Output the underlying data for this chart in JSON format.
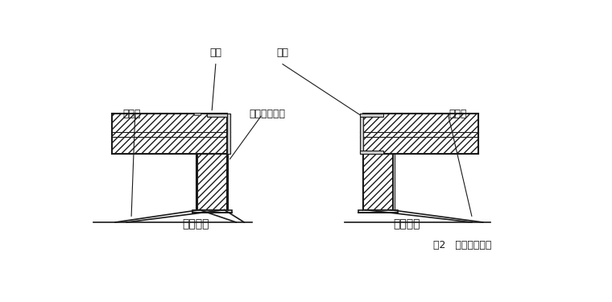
{
  "bg_color": "#ffffff",
  "line_color": "#1a1a1a",
  "label_单面拉结": "单面拉结",
  "label_双面拉结": "双面拉结",
  "label_角钢1": "角钢",
  "label_角钢2": "角钢",
  "label_钢拉杆1": "钢拉杆",
  "label_钢拉杆2": "钢拉杆",
  "label_水泥砂浆灌实": "水泥砂浆灌实",
  "caption": "图2   外墙转角加固",
  "font": "SimSun"
}
